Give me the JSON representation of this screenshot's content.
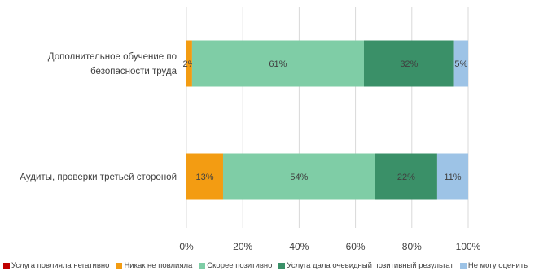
{
  "chart_data": {
    "type": "bar",
    "orientation": "horizontal",
    "stacked": "percent",
    "title": "",
    "categories": [
      [
        "Дополнительное обучение по",
        "безопасности труда"
      ],
      [
        "Аудиты, проверки третьей стороной"
      ]
    ],
    "series": [
      {
        "name": "Услуга повлияла негативно",
        "color": "#C00000",
        "values": [
          0,
          0
        ],
        "labels": [
          "",
          ""
        ]
      },
      {
        "name": "Никак не повлияла",
        "color": "#F39C12",
        "values": [
          2,
          13
        ],
        "labels": [
          "2%",
          "13%"
        ]
      },
      {
        "name": "Скорее позитивно",
        "color": "#7FCDA6",
        "values": [
          61,
          54
        ],
        "labels": [
          "61%",
          "54%"
        ]
      },
      {
        "name": "Услуга дала очевидный позитивный результат",
        "color": "#3A9068",
        "values": [
          32,
          22
        ],
        "labels": [
          "32%",
          "22%"
        ]
      },
      {
        "name": "Не могу оценить",
        "color": "#9DC3E6",
        "values": [
          5,
          11
        ],
        "labels": [
          "5%",
          "11%"
        ]
      }
    ],
    "xlim": [
      0,
      100
    ],
    "x_ticks": [
      "0%",
      "20%",
      "40%",
      "60%",
      "80%",
      "100%"
    ],
    "grid": true,
    "legend_position": "bottom"
  }
}
